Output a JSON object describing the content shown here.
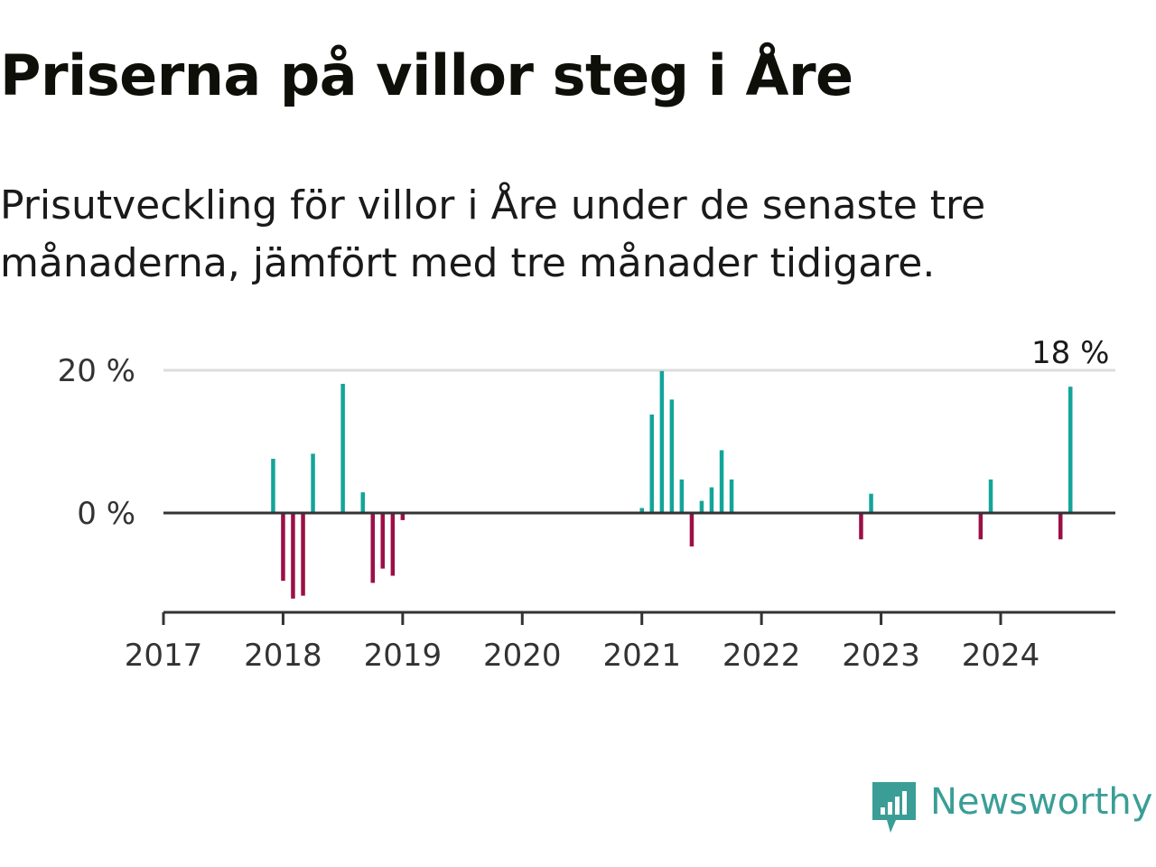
{
  "header": {
    "title": "Priserna på villor steg i Åre",
    "subtitle": "Prisutveckling för villor i Åre under de senaste tre månaderna, jämfört med tre månader tidigare."
  },
  "brand": {
    "name": "Newsworthy",
    "icon": "newsworthy-logo-icon",
    "color": "#3a9e96"
  },
  "colors": {
    "positive": "#12a59a",
    "negative": "#9c0f47",
    "axis": "#333333",
    "grid": "#dddddd"
  },
  "chart_data": {
    "type": "bar",
    "xlabel": "",
    "ylabel": "",
    "x_ticks": [
      "2017",
      "2018",
      "2019",
      "2020",
      "2021",
      "2022",
      "2023",
      "2024"
    ],
    "y_ticks": [
      "0 %",
      "20 %"
    ],
    "ylim": [
      -14,
      20
    ],
    "xlim": [
      2017.0,
      2024.95
    ],
    "grid": true,
    "legend": "none",
    "annotation": {
      "text": "18 %",
      "x": 2024.583,
      "y": 17.7
    },
    "x": [
      2017.917,
      2018.0,
      2018.083,
      2018.167,
      2018.25,
      2018.5,
      2018.667,
      2018.75,
      2018.833,
      2018.917,
      2019.0,
      2021.0,
      2021.083,
      2021.167,
      2021.25,
      2021.333,
      2021.417,
      2021.5,
      2021.583,
      2021.667,
      2021.75,
      2022.833,
      2022.917,
      2023.833,
      2023.917,
      2024.5,
      2024.583
    ],
    "values": [
      7.6,
      -9.5,
      -12.0,
      -11.6,
      8.3,
      18.1,
      2.9,
      -9.8,
      -7.8,
      -8.8,
      -1.0,
      0.7,
      13.8,
      19.9,
      15.9,
      4.7,
      -4.7,
      1.7,
      3.6,
      8.8,
      4.7,
      -3.7,
      2.7,
      -3.7,
      4.7,
      -3.7,
      17.7
    ]
  }
}
